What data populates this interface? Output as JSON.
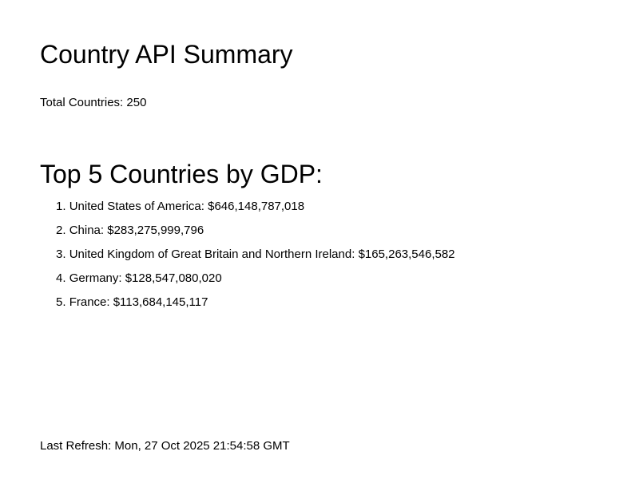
{
  "page": {
    "title": "Country API Summary",
    "total_label": "Total Countries:",
    "total_value": "250"
  },
  "gdp_section": {
    "title": "Top 5 Countries by GDP:",
    "items": [
      {
        "rank": "1.",
        "country": "United States of America",
        "value": "$646,148,787,018"
      },
      {
        "rank": "2.",
        "country": "China",
        "value": "$283,275,999,796"
      },
      {
        "rank": "3.",
        "country": "United Kingdom of Great Britain and Northern Ireland",
        "value": "$165,263,546,582"
      },
      {
        "rank": "4.",
        "country": "Germany",
        "value": "$128,547,080,020"
      },
      {
        "rank": "5.",
        "country": "France",
        "value": "$113,684,145,117"
      }
    ]
  },
  "footer": {
    "refresh_label": "Last Refresh:",
    "refresh_value": "Mon, 27 Oct 2025 21:54:58 GMT"
  }
}
